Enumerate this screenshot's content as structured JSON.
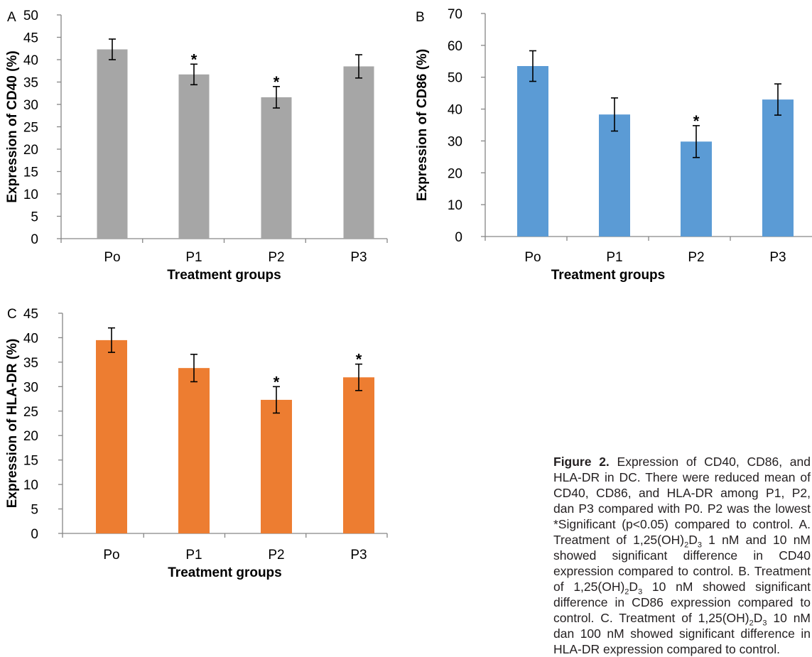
{
  "chart_data": [
    {
      "type": "bar",
      "panel_label": "A",
      "categories": [
        "Po",
        "P1",
        "P2",
        "P3"
      ],
      "values": [
        42.3,
        36.7,
        31.6,
        38.5
      ],
      "errors": [
        2.3,
        2.3,
        2.4,
        2.6
      ],
      "significant": [
        false,
        true,
        true,
        false
      ],
      "xlabel": "Treatment groups",
      "ylabel": "Expression of CD40 (%)",
      "ylim": [
        0,
        50
      ],
      "yticks": [
        0,
        5,
        10,
        15,
        20,
        25,
        30,
        35,
        40,
        45,
        50
      ],
      "color": "#a6a6a6",
      "grid": false
    },
    {
      "type": "bar",
      "panel_label": "B",
      "categories": [
        "Po",
        "P1",
        "P2",
        "P3"
      ],
      "values": [
        53.5,
        38.3,
        29.8,
        43.0
      ],
      "errors": [
        4.8,
        5.2,
        5.0,
        4.9
      ],
      "significant": [
        false,
        false,
        true,
        false
      ],
      "xlabel": "Treatment groups",
      "ylabel": "Expression of CD86 (%)",
      "ylim": [
        0,
        70
      ],
      "yticks": [
        0,
        10,
        20,
        30,
        40,
        50,
        60,
        70
      ],
      "color": "#5b9bd5",
      "grid": false
    },
    {
      "type": "bar",
      "panel_label": "C",
      "categories": [
        "Po",
        "P1",
        "P2",
        "P3"
      ],
      "values": [
        39.5,
        33.8,
        27.3,
        31.9
      ],
      "errors": [
        2.5,
        2.8,
        2.7,
        2.7
      ],
      "significant": [
        false,
        false,
        true,
        true
      ],
      "xlabel": "Treatment groups",
      "ylabel": "Expression of HLA-DR (%)",
      "ylim": [
        0,
        45
      ],
      "yticks": [
        0,
        5,
        10,
        15,
        20,
        25,
        30,
        35,
        40,
        45
      ],
      "color": "#ed7d31",
      "grid": false
    }
  ],
  "caption": {
    "label": "Figure 2.",
    "text_1": " Expression of CD40, CD86, and HLA-DR in DC. There were reduced mean of CD40, CD86, and HLA-DR among P1, P2, dan P3 compared with P0. P2 was the lowest *Significant (p<0.05) compared to control. A. Treatment of 1,25(OH)",
    "sub_a": "2",
    "text_2": "D",
    "sub_b": "3",
    "text_3": " 1 nM and 10 nM showed significant difference in CD40 expression compared to control. B. Treatment of 1,25(OH)",
    "sub_c": "2",
    "text_4": "D",
    "sub_d": "3",
    "text_5": " 10 nM showed significant difference in CD86 expression compared to control. C. Treatment of 1,25(OH)",
    "sub_e": "2",
    "text_6": "D",
    "sub_f": "3",
    "text_7": " 10 nM dan 100 nM showed significant difference in HLA-DR expression compared to control."
  }
}
